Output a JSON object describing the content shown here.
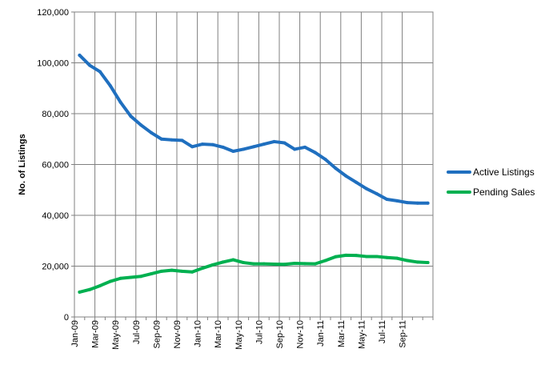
{
  "chart_data": {
    "type": "line",
    "ylabel": "No. of Listings",
    "ylim": [
      0,
      120000
    ],
    "yticks": [
      0,
      20000,
      40000,
      60000,
      80000,
      100000,
      120000
    ],
    "ytick_labels": [
      "0",
      "20,000",
      "40,000",
      "60,000",
      "80,000",
      "100,000",
      "120,000"
    ],
    "grid": true,
    "legend_position": "right",
    "x": [
      "Jan-09",
      "Feb-09",
      "Mar-09",
      "Apr-09",
      "May-09",
      "Jun-09",
      "Jul-09",
      "Aug-09",
      "Sep-09",
      "Oct-09",
      "Nov-09",
      "Dec-09",
      "Jan-10",
      "Feb-10",
      "Mar-10",
      "Apr-10",
      "May-10",
      "Jun-10",
      "Jul-10",
      "Aug-10",
      "Sep-10",
      "Oct-10",
      "Nov-10",
      "Dec-10",
      "Jan-11",
      "Feb-11",
      "Mar-11",
      "Apr-11",
      "May-11",
      "Jun-11",
      "Jul-11",
      "Aug-11",
      "Sep-11",
      "Oct-11",
      "Nov-11"
    ],
    "xtick_labels": [
      "Jan-09",
      "Mar-09",
      "May-09",
      "Jul-09",
      "Sep-09",
      "Nov-09",
      "Jan-10",
      "Mar-10",
      "May-10",
      "Jul-10",
      "Sep-10",
      "Nov-10",
      "Jan-11",
      "Mar-11",
      "May-11",
      "Jul-11",
      "Sep-11"
    ],
    "series": [
      {
        "name": "Active Listings",
        "color": "#1F6FBF",
        "values": [
          103000,
          99000,
          96500,
          91000,
          84500,
          79000,
          75500,
          72500,
          70000,
          69700,
          69500,
          67000,
          68000,
          67800,
          66800,
          65200,
          66000,
          67000,
          68000,
          69000,
          68500,
          66000,
          66800,
          64700,
          62000,
          58500,
          55500,
          53000,
          50500,
          48500,
          46300,
          45700,
          45000,
          44800,
          44800
        ]
      },
      {
        "name": "Pending Sales",
        "color": "#00B050",
        "values": [
          9800,
          10800,
          12300,
          14000,
          15200,
          15600,
          16000,
          17000,
          18000,
          18400,
          18000,
          17700,
          19200,
          20500,
          21600,
          22500,
          21400,
          20900,
          20900,
          20800,
          20700,
          21100,
          21000,
          20900,
          22200,
          23700,
          24300,
          24200,
          23800,
          23800,
          23400,
          23100,
          22200,
          21600,
          21400
        ]
      }
    ]
  }
}
